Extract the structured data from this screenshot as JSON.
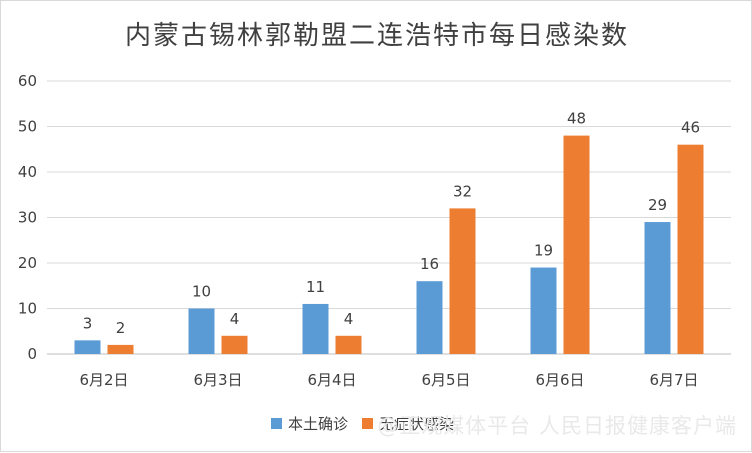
{
  "chart_data": {
    "type": "bar",
    "title": "内蒙古锡林郭勒盟二连浩特市每日感染数",
    "categories": [
      "6月2日",
      "6月3日",
      "6月4日",
      "6月5日",
      "6月6日",
      "6月7日"
    ],
    "series": [
      {
        "name": "本土确诊",
        "values": [
          3,
          10,
          11,
          16,
          19,
          29
        ],
        "color": "#5b9bd5"
      },
      {
        "name": "无症状感染",
        "values": [
          2,
          4,
          4,
          32,
          48,
          46
        ],
        "color": "#ed7d31"
      }
    ],
    "ylim": [
      0,
      60
    ],
    "yticks": [
      0,
      10,
      20,
      30,
      40,
      50,
      60
    ],
    "grid": true,
    "legend": "bottom",
    "data_labels": true
  },
  "watermark": "@正观媒体平台 人民日报健康客户端"
}
